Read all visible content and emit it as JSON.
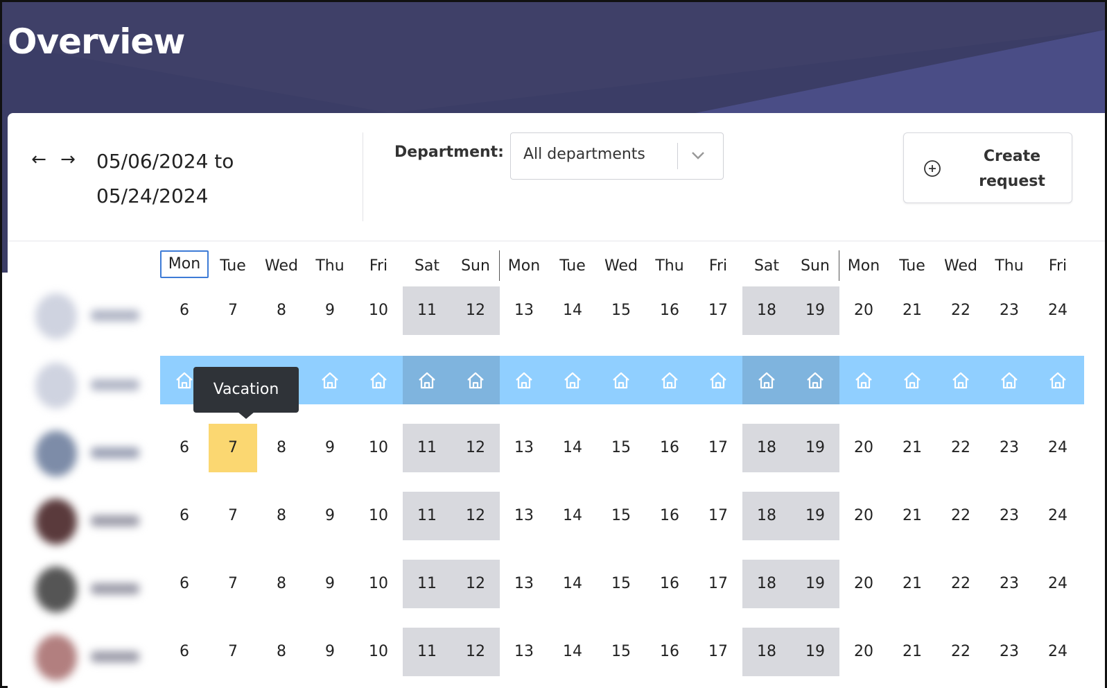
{
  "page": {
    "title": "Overview"
  },
  "toolbar": {
    "prev_arrow": "←",
    "next_arrow": "→",
    "date_from": "05/06/2024 to",
    "date_to": "05/24/2024",
    "department_label": "Department:",
    "department_value": "All departments",
    "create_label_1": "Create",
    "create_label_2": "request"
  },
  "calendar": {
    "weekdays": [
      "Mon",
      "Tue",
      "Wed",
      "Thu",
      "Fri",
      "Sat",
      "Sun",
      "Mon",
      "Tue",
      "Wed",
      "Thu",
      "Fri",
      "Sat",
      "Sun",
      "Mon",
      "Tue",
      "Wed",
      "Thu",
      "Fri"
    ],
    "days": [
      "6",
      "7",
      "8",
      "9",
      "10",
      "11",
      "12",
      "13",
      "14",
      "15",
      "16",
      "17",
      "18",
      "19",
      "20",
      "21",
      "22",
      "23",
      "24"
    ],
    "weekend_indices": [
      5,
      6,
      12,
      13
    ],
    "highlighted_today_index": 0,
    "rows": [
      {
        "type": "days"
      },
      {
        "type": "home-office"
      },
      {
        "type": "days",
        "vacation_index": 1
      },
      {
        "type": "days"
      },
      {
        "type": "days"
      },
      {
        "type": "days"
      }
    ],
    "tooltip": "Vacation"
  },
  "colors": {
    "header_bg": "#3b3d66",
    "weekend_bg": "#d8d9de",
    "home_office_bg": "#90cfff",
    "vacation_bg": "#fbd771",
    "tooltip_bg": "#2f3338"
  },
  "icons": {
    "home": "house-icon",
    "add": "plus-circle-icon",
    "dropdown": "chevron-down-icon"
  }
}
